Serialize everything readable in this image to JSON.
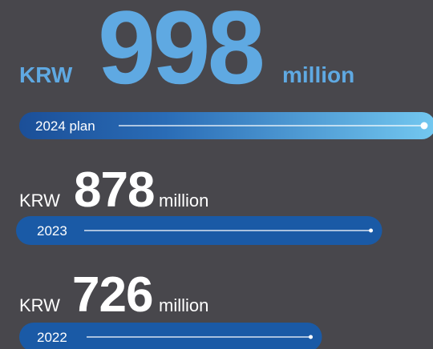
{
  "chart_data": {
    "type": "bar",
    "currency": "KRW",
    "unit": "million",
    "categories": [
      "2024 plan",
      "2023",
      "2022"
    ],
    "values": [
      998,
      878,
      726
    ]
  }
}
